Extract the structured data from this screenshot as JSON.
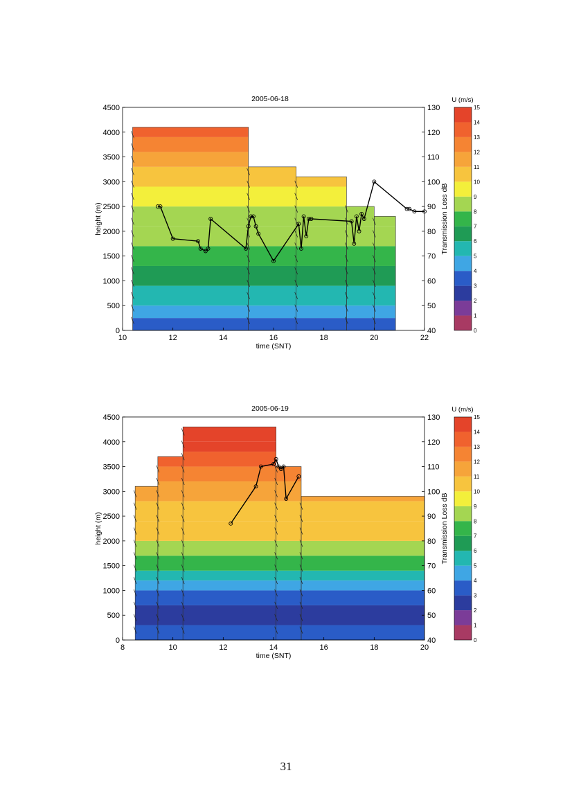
{
  "page_number": "31",
  "colorbar": {
    "title": "U (m/s)",
    "ticks": [
      "15",
      "14",
      "13",
      "12",
      "11",
      "10",
      "9",
      "8",
      "7",
      "6",
      "5",
      "4",
      "3",
      "2",
      "1",
      "0"
    ],
    "colors": [
      "#a83a63",
      "#7b3c98",
      "#2c3c9e",
      "#2a5cc7",
      "#3fa6e4",
      "#23b7b1",
      "#1f9b55",
      "#34b54a",
      "#a4d652",
      "#f3ef3b",
      "#f7c43e",
      "#f6a43a",
      "#f58433",
      "#f0622e",
      "#e4442a"
    ]
  },
  "chart_data": [
    {
      "type": "heatmap",
      "title": "2005-06-18",
      "xlabel": "time (SNT)",
      "ylabel": "height (m)",
      "y2label": "Transmission Loss dB",
      "xlim": [
        10,
        22
      ],
      "ylim": [
        0,
        4500
      ],
      "y2lim": [
        40,
        130
      ],
      "x_ticks": [
        "10",
        "12",
        "14",
        "16",
        "18",
        "20",
        "22"
      ],
      "y_ticks": [
        "0",
        "500",
        "1000",
        "1500",
        "2000",
        "2500",
        "3000",
        "3500",
        "4000",
        "4500"
      ],
      "y2_ticks": [
        "40",
        "50",
        "60",
        "70",
        "80",
        "90",
        "100",
        "110",
        "120",
        "130"
      ],
      "columns": [
        {
          "x0": 10.4,
          "x1": 15.0,
          "top": 4100
        },
        {
          "x0": 15.0,
          "x1": 16.9,
          "top": 3300
        },
        {
          "x0": 16.9,
          "x1": 18.9,
          "top": 3100
        },
        {
          "x0": 18.9,
          "x1": 20.0,
          "top": 2500
        },
        {
          "x0": 20.0,
          "x1": 20.85,
          "top": 2300
        }
      ],
      "wind_profile": [
        {
          "h": 0,
          "u": 3
        },
        {
          "h": 250,
          "u": 4
        },
        {
          "h": 500,
          "u": 5
        },
        {
          "h": 900,
          "u": 6
        },
        {
          "h": 1300,
          "u": 7
        },
        {
          "h": 1700,
          "u": 8
        },
        {
          "h": 2100,
          "u": 8
        },
        {
          "h": 2500,
          "u": 9
        },
        {
          "h": 2900,
          "u": 10
        },
        {
          "h": 3300,
          "u": 11
        },
        {
          "h": 3600,
          "u": 12
        },
        {
          "h": 3900,
          "u": 13
        },
        {
          "h": 4100,
          "u": 14
        }
      ],
      "transmission_loss": {
        "x": [
          11.4,
          11.5,
          12.0,
          13.0,
          13.1,
          13.3,
          13.4,
          13.5,
          14.9,
          15.0,
          15.1,
          15.2,
          15.3,
          15.4,
          16.0,
          17.0,
          17.1,
          17.2,
          17.3,
          17.4,
          17.5,
          19.1,
          19.2,
          19.3,
          19.4,
          19.5,
          19.6,
          20.0,
          21.3,
          21.4,
          21.6,
          22.0
        ],
        "y": [
          90,
          90,
          77,
          76,
          73,
          72,
          73,
          85,
          73,
          82,
          86,
          86,
          82,
          79,
          68,
          83,
          73,
          86,
          78,
          85,
          85,
          84,
          75,
          86,
          80,
          87,
          85,
          100,
          89,
          89,
          88,
          88
        ]
      }
    },
    {
      "type": "heatmap",
      "title": "2005-06-19",
      "xlabel": "time (SNT)",
      "ylabel": "height (m)",
      "y2label": "Transmission Loss dB",
      "xlim": [
        8,
        20
      ],
      "ylim": [
        0,
        4500
      ],
      "y2lim": [
        40,
        130
      ],
      "x_ticks": [
        "8",
        "10",
        "12",
        "14",
        "16",
        "18",
        "20"
      ],
      "y_ticks": [
        "0",
        "500",
        "1000",
        "1500",
        "2000",
        "2500",
        "3000",
        "3500",
        "4000",
        "4500"
      ],
      "y2_ticks": [
        "40",
        "50",
        "60",
        "70",
        "80",
        "90",
        "100",
        "110",
        "120",
        "130"
      ],
      "columns": [
        {
          "x0": 8.5,
          "x1": 9.4,
          "top": 3100
        },
        {
          "x0": 9.4,
          "x1": 10.4,
          "top": 3700
        },
        {
          "x0": 10.4,
          "x1": 14.1,
          "top": 4300
        },
        {
          "x0": 14.1,
          "x1": 15.1,
          "top": 3500
        },
        {
          "x0": 15.1,
          "x1": 20.0,
          "top": 2900
        }
      ],
      "wind_profile": [
        {
          "h": 0,
          "u": 3
        },
        {
          "h": 300,
          "u": 2
        },
        {
          "h": 700,
          "u": 3
        },
        {
          "h": 1000,
          "u": 4
        },
        {
          "h": 1200,
          "u": 5
        },
        {
          "h": 1400,
          "u": 7
        },
        {
          "h": 1700,
          "u": 8
        },
        {
          "h": 2000,
          "u": 10
        },
        {
          "h": 2400,
          "u": 10
        },
        {
          "h": 2800,
          "u": 11
        },
        {
          "h": 3200,
          "u": 12
        },
        {
          "h": 3500,
          "u": 13
        },
        {
          "h": 3800,
          "u": 14
        },
        {
          "h": 4000,
          "u": 15
        }
      ],
      "transmission_loss": {
        "x": [
          12.3,
          13.3,
          13.5,
          14.0,
          14.1,
          14.2,
          14.3,
          14.4,
          14.5,
          15.0
        ],
        "y": [
          87,
          102,
          110,
          111,
          113,
          110,
          109,
          110,
          97,
          106
        ]
      }
    }
  ]
}
